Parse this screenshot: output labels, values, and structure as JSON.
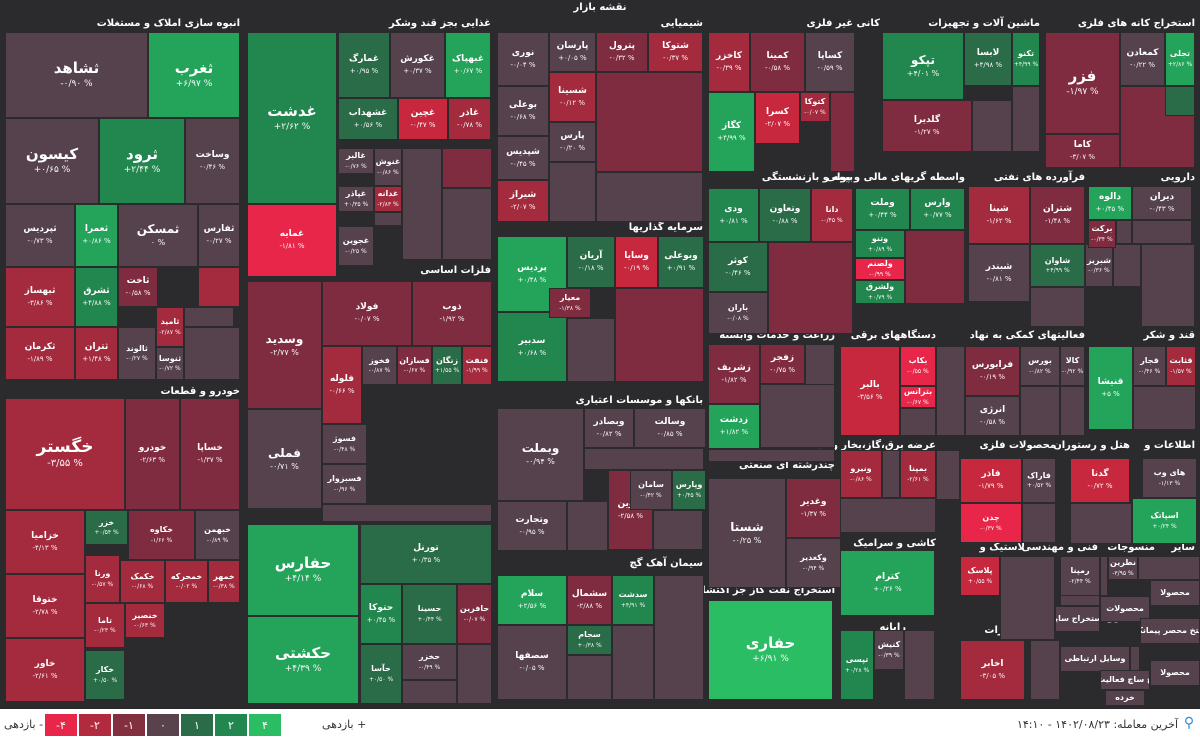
{
  "map_title": "نقشه بازار",
  "colors": {
    "n4": "#e8264a",
    "n3": "#c8283e",
    "n2": "#a42a3e",
    "n1": "#7f2c40",
    "z": "#56424d",
    "p1": "#2a6b48",
    "p2": "#22864f",
    "p3": "#24a45a",
    "p4": "#2bbd63"
  },
  "sections": [
    {
      "label": "انبوه سازی املاک و مستغلات"
    },
    {
      "label": "غذایی بجز قند وشکر"
    },
    {
      "label": "شیمیایی"
    },
    {
      "label": "کانی غیر فلزی"
    },
    {
      "label": "ماشین آلات و تجهیزات"
    },
    {
      "label": "استخراج کانه های فلزی"
    },
    {
      "label": "فرآورده های نفتی"
    },
    {
      "label": "واسطه گریهای مالی و پولی"
    },
    {
      "label": "بیمه و بازنشستگی"
    },
    {
      "label": "سرمایه گذاریها"
    },
    {
      "label": "دارویی"
    },
    {
      "label": "فلزات اساسی"
    },
    {
      "label": "خودرو و قطعات"
    },
    {
      "label": "فعالیتهای کمکی به نهاد"
    },
    {
      "label": "دستگاههای برقی"
    },
    {
      "label": "زراعت و خدمات وابسته"
    },
    {
      "label": "قند و شکر"
    },
    {
      "label": "بانکها و موسسات اعتباری"
    },
    {
      "label": "اطلاعات و"
    },
    {
      "label": "هتل و رستوران"
    },
    {
      "label": "محصولات فلزی"
    },
    {
      "label": "عرضه برق،گاز،بخار و آب"
    },
    {
      "label": "چندرشته ای صنعتی"
    },
    {
      "label": "حمل و نقل انبارداری و ارتباطات"
    },
    {
      "label": "کاشی و سرامیک"
    },
    {
      "label": "سیمان آهک گچ"
    },
    {
      "label": "لاستیک و"
    },
    {
      "label": "فنی و مهندسی"
    },
    {
      "label": "منسوجات"
    },
    {
      "label": "سایر"
    },
    {
      "label": "استخراج نفت گاز جز اکتشاف"
    },
    {
      "label": "رایانه"
    },
    {
      "label": "مخابرات"
    },
    {
      "label": "استخراج سایر"
    }
  ],
  "tiles": [
    {
      "name": "ثشاهد",
      "change": "% ۰/۹۰-"
    },
    {
      "name": "ثغرب",
      "change": "% ۶/۹۷+"
    },
    {
      "name": "کیسون",
      "change": "% ۰/۶۵+"
    },
    {
      "name": "ثرود",
      "change": "% ۲/۴۴+"
    },
    {
      "name": "وساخت",
      "change": "% ۰/۴۶-"
    },
    {
      "name": "ثپردیس",
      "change": "% ۰/۷۳-"
    },
    {
      "name": "ثعمرا",
      "change": "% ۰/۸۶+"
    },
    {
      "name": "ثمسکن",
      "change": "% ۰"
    },
    {
      "name": "ثفارس",
      "change": "% ۰/۲۷-"
    },
    {
      "name": "ثبهساز",
      "change": "% ۳/۸۶-"
    },
    {
      "name": "ثشرق",
      "change": "% ۴/۸۸+"
    },
    {
      "name": "ثاخت",
      "change": "% ۰/۵۸-"
    },
    {
      "name": "ثامید",
      "change": "% ۲/۸۷-"
    },
    {
      "name": "ثکرمان",
      "change": "% ۱/۸۹-"
    },
    {
      "name": "ثتران",
      "change": "% ۱/۴۸+"
    },
    {
      "name": "ثالوند",
      "change": "% ۰/۲۷-"
    },
    {
      "name": "ثنوسا",
      "change": "% ۰/۷۲-"
    },
    {
      "name": "غدشت",
      "change": "% ۲/۶۲+"
    },
    {
      "name": "غمارگ",
      "change": "% ۰/۹۵+"
    },
    {
      "name": "غکورش",
      "change": "% ۰/۳۷+"
    },
    {
      "name": "غبهپاک",
      "change": "% ۰/۶۷+"
    },
    {
      "name": "غشهداب",
      "change": "% ۰/۵۶+"
    },
    {
      "name": "غچین",
      "change": "% ۰/۴۷-"
    },
    {
      "name": "غاذر",
      "change": "% ۰/۷۸-"
    },
    {
      "name": "غالبر",
      "change": "% ۰/۷۶-"
    },
    {
      "name": "غگل",
      "change": "% ۳/۴۳-"
    },
    {
      "name": "غپاذر",
      "change": "% ۰/۳۵+"
    },
    {
      "name": "غدانه",
      "change": "% ۲/۸۳-"
    },
    {
      "name": "غمایه",
      "change": "% ۱/۸۱-"
    },
    {
      "name": "غنوش",
      "change": "% ۰/۸۶-"
    },
    {
      "name": "غجوین",
      "change": "% ۰/۲۵-"
    },
    {
      "name": "نوری",
      "change": "% ۰/۰۴-"
    },
    {
      "name": "پارسان",
      "change": "% ۰/۰۵+"
    },
    {
      "name": "پترول",
      "change": "% ۰/۳۲-"
    },
    {
      "name": "شتوکا",
      "change": "% ۰/۳۷-"
    },
    {
      "name": "شسینا",
      "change": "% ۰/۱۲-"
    },
    {
      "name": "بوعلی",
      "change": "% ۰/۶۸-"
    },
    {
      "name": "شپدیس",
      "change": "% ۰/۴۵-"
    },
    {
      "name": "پارس",
      "change": "% ۰/۲۰-"
    },
    {
      "name": "شیراز",
      "change": "% ۲/۰۷-"
    },
    {
      "name": "کاخزر",
      "change": "% ۰/۳۹-"
    },
    {
      "name": "کمینا",
      "change": "% ۰/۵۸-"
    },
    {
      "name": "کساپا",
      "change": "% ۰/۵۹-"
    },
    {
      "name": "کسرا",
      "change": "% ۲/۰۷-"
    },
    {
      "name": "کتوکا",
      "change": "% ۰/۰۷-"
    },
    {
      "name": "کگاز",
      "change": "% ۴/۹۹+"
    },
    {
      "name": "تپکو",
      "change": "% ۴/۰۱+"
    },
    {
      "name": "لابسا",
      "change": "% ۴/۹۸+"
    },
    {
      "name": "تکنو",
      "change": "% ۴/۹۹+"
    },
    {
      "name": "گلدیرا",
      "change": "% ۱/۲۷-"
    },
    {
      "name": "فزر",
      "change": "% ۱/۹۷-"
    },
    {
      "name": "کمعادن",
      "change": "% ۰/۲۲-"
    },
    {
      "name": "تجلی",
      "change": "% ۲/۸۶+"
    },
    {
      "name": "کاما",
      "change": "% ۳/۰۷-"
    },
    {
      "name": "شپنا",
      "change": "% ۱/۶۲-"
    },
    {
      "name": "شتران",
      "change": "% ۱/۴۸-"
    },
    {
      "name": "شاوان",
      "change": "% ۴/۹۹+"
    },
    {
      "name": "شبریز",
      "change": "% ۰/۳۶-"
    },
    {
      "name": "شبندر",
      "change": "% ۰/۸۱-"
    },
    {
      "name": "دالوه",
      "change": "% ۰/۴۵+"
    },
    {
      "name": "دیران",
      "change": "% ۰/۴۳-"
    },
    {
      "name": "برکت",
      "change": "% ۰/۳۴-"
    },
    {
      "name": "وبملت",
      "change": "% ۰/۹۴-"
    },
    {
      "name": "وتجارت",
      "change": "% ۰/۹۵-"
    },
    {
      "name": "وبصادر",
      "change": "% ۰/۸۲-"
    },
    {
      "name": "وسالت",
      "change": "% ۰/۸۵-"
    },
    {
      "name": "ونوین",
      "change": "% ۲/۵۸-"
    },
    {
      "name": "وپارس",
      "change": "% ۰/۴۵+"
    },
    {
      "name": "سامان",
      "change": "% ۰/۴۲-"
    },
    {
      "name": "وسدید",
      "change": "% ۲/۷۷-"
    },
    {
      "name": "فملی",
      "change": "% ۰/۷۱-"
    },
    {
      "name": "فولاد",
      "change": "% ۰/۰۷-"
    },
    {
      "name": "ذوب",
      "change": "% ۱/۹۲-"
    },
    {
      "name": "فلوله",
      "change": "% ۰/۶۶-"
    },
    {
      "name": "فخوز",
      "change": "% ۰/۸۷-"
    },
    {
      "name": "فسازان",
      "change": "% ۰/۶۷-"
    },
    {
      "name": "زنگان",
      "change": "% ۱/۵۵+"
    },
    {
      "name": "فنفت",
      "change": "% ۱/۹۹-"
    },
    {
      "name": "فسوژ",
      "change": "% ۰/۴۸-"
    },
    {
      "name": "فسبزوار",
      "change": "% ۰/۹۶-"
    },
    {
      "name": "خگستر",
      "change": "% ۳/۵۵-"
    },
    {
      "name": "خودرو",
      "change": "% ۲/۶۳-"
    },
    {
      "name": "خساپا",
      "change": "% ۱/۳۷-"
    },
    {
      "name": "خزامیا",
      "change": "% ۴/۱۳-"
    },
    {
      "name": "خزر",
      "change": "% ۰/۵۴+"
    },
    {
      "name": "خکاوه",
      "change": "% ۱/۶۶-"
    },
    {
      "name": "خبهمن",
      "change": "% ۰/۸۹-"
    },
    {
      "name": "ورنا",
      "change": "% ۰/۵۷-"
    },
    {
      "name": "خکمک",
      "change": "% ۰/۶۸-"
    },
    {
      "name": "خمحرکه",
      "change": "% ۰/۰۲-"
    },
    {
      "name": "خمهر",
      "change": "% ۰/۳۸-"
    },
    {
      "name": "ختوقا",
      "change": "% ۲/۷۸-"
    },
    {
      "name": "تاما",
      "change": "% ۰/۲۳-"
    },
    {
      "name": "خنصیر",
      "change": "% ۰/۶۳-"
    },
    {
      "name": "خاور",
      "change": "% ۲/۶۱-"
    },
    {
      "name": "خکار",
      "change": "% ۰/۵۰+"
    },
    {
      "name": "حفارس",
      "change": "% ۴/۱۴+"
    },
    {
      "name": "حکشتی",
      "change": "% ۴/۳۹+"
    },
    {
      "name": "حتوکا",
      "change": "% ۰/۴۵+"
    },
    {
      "name": "حسینا",
      "change": "% ۰/۴۴+"
    },
    {
      "name": "حافرین",
      "change": "% ۰/۰۷-"
    },
    {
      "name": "حخزر",
      "change": "% ۰/۴۹-"
    },
    {
      "name": "تورنل",
      "change": "% ۰/۳۵+"
    },
    {
      "name": "حآسا",
      "change": "% ۰/۵۰+"
    },
    {
      "name": "پردیس",
      "change": "% ۰/۴۸+"
    },
    {
      "name": "سدبیر",
      "change": "% ۰/۶۸+"
    },
    {
      "name": "آریان",
      "change": "% ۰/۱۸-"
    },
    {
      "name": "وسایا",
      "change": "% ۰/۱۹-"
    },
    {
      "name": "وبوعلی",
      "change": "% ۰/۹۱+"
    },
    {
      "name": "معیار",
      "change": "% ۱/۳۸-"
    },
    {
      "name": "وتعاون",
      "change": "% ۰/۸۸-"
    },
    {
      "name": "ودی",
      "change": "% ۰/۸۱+"
    },
    {
      "name": "دانا",
      "change": "% ۰/۴۵-"
    },
    {
      "name": "کوثر",
      "change": "% ۰/۴۶-"
    },
    {
      "name": "باران",
      "change": "% ۰/۰۸-"
    },
    {
      "name": "وملت",
      "change": "% ۰/۴۴+"
    },
    {
      "name": "وارس",
      "change": "% ۰/۷۷+"
    },
    {
      "name": "وتنو",
      "change": "% ۰/۸۹+"
    },
    {
      "name": "ولصنم",
      "change": "% ۰/۹۹-"
    },
    {
      "name": "ولشرق",
      "change": "% ۰/۷۹+"
    },
    {
      "name": "زشریف",
      "change": "% ۱/۸۲-"
    },
    {
      "name": "زفجر",
      "change": "% ۰/۷۵-"
    },
    {
      "name": "زدشت",
      "change": "% ۱/۸۲+"
    },
    {
      "name": "بالبر",
      "change": "% ۳/۵۶-"
    },
    {
      "name": "بکاب",
      "change": "% ۰/۵۵-"
    },
    {
      "name": "بترانس",
      "change": "% ۰/۶۷-"
    },
    {
      "name": "فرابورس",
      "change": "% ۰/۱۹-"
    },
    {
      "name": "بورس",
      "change": "% ۰/۸۲-"
    },
    {
      "name": "انرژی",
      "change": "% ۰/۵۸-"
    },
    {
      "name": "کالا",
      "change": "% ۰/۹۲-"
    },
    {
      "name": "قنیشا",
      "change": "% ۵+"
    },
    {
      "name": "قجار",
      "change": "% ۰/۴۶-"
    },
    {
      "name": "قثابت",
      "change": "% ۱/۵۷-"
    },
    {
      "name": "شستا",
      "change": "% ۰/۲۵-"
    },
    {
      "name": "وغدیر",
      "change": "% ۱/۳۷-"
    },
    {
      "name": "وکغدیر",
      "change": "% ۰/۹۴-"
    },
    {
      "name": "حفاری",
      "change": "% ۶/۹۱+"
    },
    {
      "name": "سشمال",
      "change": "% ۲/۸۸-"
    },
    {
      "name": "سدشت",
      "change": "% ۴/۹۱+"
    },
    {
      "name": "سلام",
      "change": "% ۲/۵۶+"
    },
    {
      "name": "سجام",
      "change": "% ۰/۳۸+"
    },
    {
      "name": "سصفها",
      "change": "% ۰/۰۵-"
    },
    {
      "name": "ونیرو",
      "change": "% ۰/۸۶-"
    },
    {
      "name": "بمپنا",
      "change": "% ۲/۶۱-"
    },
    {
      "name": "کترام",
      "change": "% ۰/۲۶+"
    },
    {
      "name": "کنیش",
      "change": "% ۰/۳۹-"
    },
    {
      "name": "تپسی",
      "change": "% ۰/۲۸+"
    },
    {
      "name": "اخابر",
      "change": "% ۳/۰۵-"
    },
    {
      "name": "فاذر",
      "change": "% ۱/۷۹-"
    },
    {
      "name": "فاراک",
      "change": "% ۰/۵۲+"
    },
    {
      "name": "چدن",
      "change": "% ۰/۳۷-"
    },
    {
      "name": "گدنا",
      "change": "% ۰/۷۲-"
    },
    {
      "name": "های وب",
      "change": "% ۱/۱۳-"
    },
    {
      "name": "اسپاتک",
      "change": "% ۰/۲۴+"
    },
    {
      "name": "پلاسک",
      "change": "% ۰/۵۵+"
    },
    {
      "name": "رمپنا",
      "change": "% ۲/۴۴-"
    },
    {
      "name": "نطرین",
      "change": "% ۳/۹۵-"
    },
    {
      "name": "محصولا",
      "change": ""
    },
    {
      "name": "محصولات",
      "change": ""
    },
    {
      "name": "استخراج سایر",
      "change": ""
    },
    {
      "name": "وسایل ارتباطی",
      "change": ""
    },
    {
      "name": "محصولا",
      "change": ""
    },
    {
      "name": "استخ محصر پیمانکار",
      "change": ""
    },
    {
      "name": "چ ساچ فعالیت",
      "change": ""
    },
    {
      "name": "خرده",
      "change": ""
    }
  ],
  "legend": {
    "neg_label": "بازدهی -",
    "pos_label": "بازدهی +",
    "bins": [
      {
        "label": "-۴",
        "color": "#e8264a"
      },
      {
        "label": "-۲",
        "color": "#b22a3e"
      },
      {
        "label": "-۱",
        "color": "#82303f"
      },
      {
        "label": "۰",
        "color": "#58424c"
      },
      {
        "label": "۱",
        "color": "#2a6b48"
      },
      {
        "label": "۲",
        "color": "#22864f"
      },
      {
        "label": "۴",
        "color": "#2bbd63"
      }
    ]
  },
  "last_trade": {
    "label": "آخرین معامله:",
    "value": "۱۴۰۲/۰۸/۲۳ - ۱۴:۱۰"
  }
}
